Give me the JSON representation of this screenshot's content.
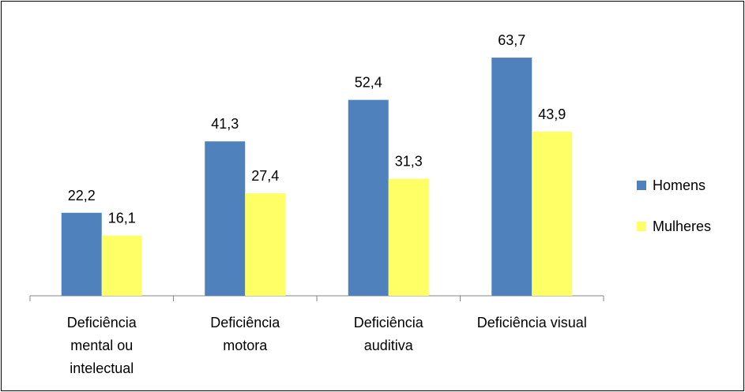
{
  "chart_data": {
    "type": "bar",
    "categories": [
      "Deficiência mental ou intelectual",
      "Deficiência motora",
      "Deficiência auditiva",
      "Deficiência visual"
    ],
    "series": [
      {
        "name": "Homens",
        "color": "#4f81bd",
        "values": [
          22.2,
          41.3,
          52.4,
          63.7
        ],
        "value_labels": [
          "22,2",
          "41,3",
          "52,4",
          "63,7"
        ]
      },
      {
        "name": "Mulheres",
        "color": "#ffff66",
        "values": [
          16.1,
          27.4,
          31.3,
          43.9
        ],
        "value_labels": [
          "16,1",
          "27,4",
          "31,3",
          "43,9"
        ]
      }
    ],
    "ylim": [
      0,
      70
    ],
    "legend": "right"
  }
}
